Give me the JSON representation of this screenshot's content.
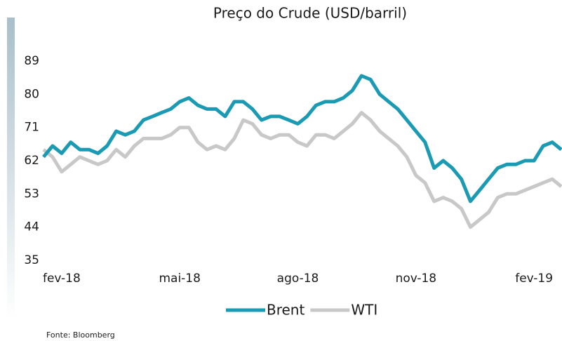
{
  "chart_data": {
    "type": "line",
    "title": "Preço do Crude (USD/barril)",
    "source": "Fonte: Bloomberg",
    "categories": [
      null,
      null,
      "fev-18",
      null,
      null,
      null,
      null,
      null,
      null,
      null,
      null,
      null,
      null,
      null,
      null,
      "mai-18",
      null,
      null,
      null,
      null,
      null,
      null,
      null,
      null,
      null,
      null,
      null,
      null,
      "ago-18",
      null,
      null,
      null,
      null,
      null,
      null,
      null,
      null,
      null,
      null,
      null,
      null,
      "nov-18",
      null,
      null,
      null,
      null,
      null,
      null,
      null,
      null,
      null,
      null,
      null,
      null,
      "fev-19",
      null,
      null,
      null
    ],
    "series": [
      {
        "name": "Brent",
        "color": "#1a9ab3",
        "values": [
          63,
          66,
          64,
          67,
          65,
          65,
          64,
          66,
          70,
          69,
          70,
          73,
          74,
          75,
          76,
          78,
          79,
          77,
          76,
          76,
          74,
          78,
          78,
          76,
          73,
          74,
          74,
          73,
          72,
          74,
          77,
          78,
          78,
          79,
          81,
          85,
          84,
          80,
          78,
          76,
          73,
          70,
          67,
          60,
          62,
          60,
          57,
          51,
          54,
          57,
          60,
          61,
          61,
          62,
          62,
          66,
          67,
          65
        ]
      },
      {
        "name": "WTI",
        "color": "#c8c8c8",
        "values": [
          65,
          63,
          59,
          61,
          63,
          62,
          61,
          62,
          65,
          63,
          66,
          68,
          68,
          68,
          69,
          71,
          71,
          67,
          65,
          66,
          65,
          68,
          73,
          72,
          69,
          68,
          69,
          69,
          67,
          66,
          69,
          69,
          68,
          70,
          72,
          75,
          73,
          70,
          68,
          66,
          63,
          58,
          56,
          51,
          52,
          51,
          49,
          44,
          46,
          48,
          52,
          53,
          53,
          54,
          55,
          56,
          57,
          55
        ]
      }
    ],
    "ylim": [
      35,
      89
    ],
    "yticks": [
      35,
      44,
      53,
      62,
      71,
      80,
      89
    ],
    "grid": false,
    "legend": "bottom"
  }
}
